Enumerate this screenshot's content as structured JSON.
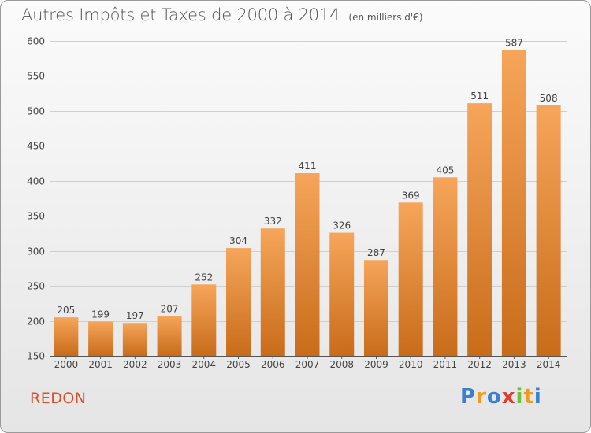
{
  "title": "Autres Impôts et Taxes de 2000 à 2014",
  "subtitle": "(en milliers d'€)",
  "commune": "REDON",
  "brand": {
    "text": "Proxiti",
    "letters": [
      "P",
      "r",
      "o",
      "x",
      "i",
      "t",
      "i"
    ]
  },
  "colors": {
    "bar_top": "#f6a55a",
    "bar_bottom": "#c86c1a",
    "grid": "#cfcfcf",
    "commune": "#d94f2b"
  },
  "chart_data": {
    "type": "bar",
    "categories": [
      "2000",
      "2001",
      "2002",
      "2003",
      "2004",
      "2005",
      "2006",
      "2007",
      "2008",
      "2009",
      "2010",
      "2011",
      "2012",
      "2013",
      "2014"
    ],
    "values": [
      205,
      199,
      197,
      207,
      252,
      304,
      332,
      411,
      326,
      287,
      369,
      405,
      511,
      587,
      508
    ],
    "title": "Autres Impôts et Taxes de 2000 à 2014",
    "ylim": [
      150,
      600
    ],
    "yticks": [
      150,
      200,
      250,
      300,
      350,
      400,
      450,
      500,
      550,
      600
    ],
    "grid": true
  }
}
